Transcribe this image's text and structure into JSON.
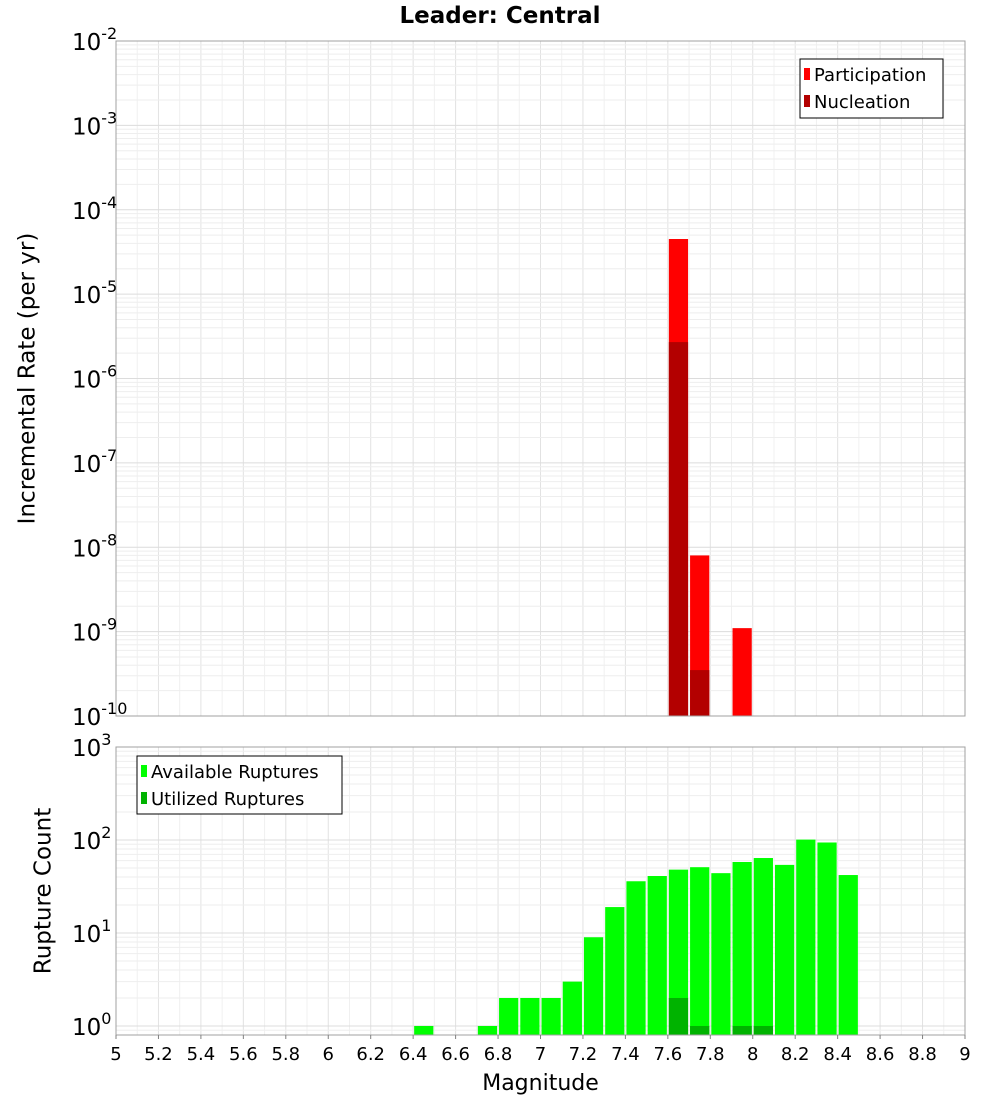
{
  "title": "Leader: Central",
  "chart_data": [
    {
      "type": "bar",
      "title": "Leader: Central",
      "ylabel": "Incremental Rate (per yr)",
      "xlabel": "",
      "yscale": "log",
      "ylim": [
        1e-10,
        0.01
      ],
      "xlim": [
        5,
        9
      ],
      "bin_width": 0.1,
      "grid": true,
      "legend_position": "top-right",
      "y_tick_labels": [
        {
          "base": "10",
          "exp": "-10"
        },
        {
          "base": "10",
          "exp": "-9"
        },
        {
          "base": "10",
          "exp": "-8"
        },
        {
          "base": "10",
          "exp": "-7"
        },
        {
          "base": "10",
          "exp": "-6"
        },
        {
          "base": "10",
          "exp": "-5"
        },
        {
          "base": "10",
          "exp": "-4"
        },
        {
          "base": "10",
          "exp": "-3"
        },
        {
          "base": "10",
          "exp": "-2"
        }
      ],
      "series": [
        {
          "name": "Participation",
          "color": "#ff0000",
          "x": [
            7.65,
            7.75,
            7.95
          ],
          "values": [
            4.5e-05,
            8e-09,
            1.1e-09
          ]
        },
        {
          "name": "Nucleation",
          "color": "#b30000",
          "x": [
            7.65,
            7.75
          ],
          "values": [
            2.7e-06,
            3.5e-10
          ]
        }
      ]
    },
    {
      "type": "bar",
      "title": "",
      "ylabel": "Rupture Count",
      "xlabel": "Magnitude",
      "yscale": "log",
      "ylim": [
        0.8,
        1000
      ],
      "xlim": [
        5,
        9
      ],
      "bin_width": 0.1,
      "grid": true,
      "legend_position": "top-left",
      "x_tick_labels": [
        "5",
        "5.2",
        "5.4",
        "5.6",
        "5.8",
        "6",
        "6.2",
        "6.4",
        "6.6",
        "6.8",
        "7",
        "7.2",
        "7.4",
        "7.6",
        "7.8",
        "8",
        "8.2",
        "8.4",
        "8.6",
        "8.8",
        "9"
      ],
      "y_tick_labels": [
        {
          "base": "10",
          "exp": "0"
        },
        {
          "base": "10",
          "exp": "1"
        },
        {
          "base": "10",
          "exp": "2"
        },
        {
          "base": "10",
          "exp": "3"
        }
      ],
      "series": [
        {
          "name": "Available Ruptures",
          "color": "#00ff00",
          "x": [
            6.45,
            6.75,
            6.85,
            6.95,
            7.05,
            7.15,
            7.25,
            7.35,
            7.45,
            7.55,
            7.65,
            7.75,
            7.85,
            7.95,
            8.05,
            8.15,
            8.25,
            8.35,
            8.45
          ],
          "values": [
            1,
            1,
            2,
            2,
            2,
            3,
            9,
            19,
            36,
            41,
            48,
            51,
            44,
            58,
            64,
            54,
            101,
            94,
            42
          ]
        },
        {
          "name": "Utilized Ruptures",
          "color": "#00b300",
          "x": [
            7.65,
            7.75,
            7.95,
            8.05
          ],
          "values": [
            2,
            1,
            1,
            1
          ]
        }
      ]
    }
  ]
}
